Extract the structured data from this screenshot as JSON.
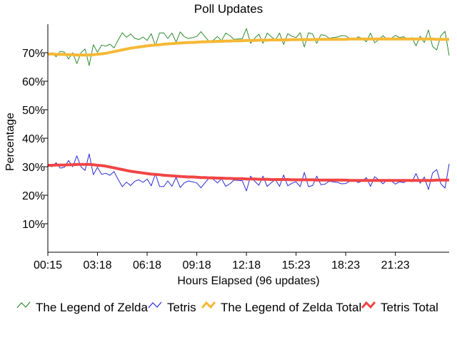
{
  "chart_data": {
    "type": "line",
    "title": "Poll Updates",
    "xlabel": "Hours Elapsed (96 updates)",
    "ylabel": "Percentage",
    "ylim": [
      0,
      80
    ],
    "yticks": [
      "10%",
      "20%",
      "30%",
      "40%",
      "50%",
      "60%",
      "70%"
    ],
    "ytick_values": [
      10,
      20,
      30,
      40,
      50,
      60,
      70
    ],
    "xticks": [
      "00:15",
      "03:18",
      "06:18",
      "09:18",
      "12:18",
      "15:23",
      "18:23",
      "21:23"
    ],
    "xtick_indices": [
      0,
      12,
      24,
      36,
      48,
      60,
      72,
      84
    ],
    "grid": false,
    "legend_position": "bottom",
    "series": [
      {
        "name": "The Legend of Zelda",
        "color": "#2e8b2e",
        "values": [
          69.5,
          70.0,
          68.6,
          70.5,
          70.2,
          67.8,
          70.0,
          66.2,
          70.0,
          71.3,
          65.5,
          72.8,
          70.2,
          72.7,
          72.3,
          73.0,
          71.7,
          74.5,
          77.0,
          75.4,
          76.6,
          75.1,
          74.6,
          75.5,
          74.3,
          76.7,
          72.5,
          76.9,
          77.0,
          75.0,
          76.9,
          73.7,
          77.3,
          75.6,
          75.0,
          75.3,
          75.7,
          77.4,
          75.6,
          73.9,
          74.4,
          75.7,
          74.2,
          76.9,
          76.0,
          74.7,
          74.8,
          74.9,
          78.5,
          73.3,
          75.1,
          76.5,
          73.3,
          76.9,
          75.6,
          74.5,
          76.9,
          72.9,
          76.7,
          75.8,
          75.3,
          77.0,
          72.0,
          77.0,
          76.6,
          73.3,
          76.3,
          76.1,
          75.1,
          75.3,
          75.5,
          76.0,
          75.9,
          75.0,
          74.4,
          75.6,
          75.0,
          73.8,
          76.9,
          73.5,
          74.6,
          76.0,
          74.6,
          75.0,
          76.1,
          75.3,
          75.6,
          74.7,
          75.3,
          72.4,
          75.8,
          73.6,
          78.0,
          72.2,
          71.0,
          76.0,
          77.5,
          69.0
        ]
      },
      {
        "name": "Tetris",
        "color": "#2a2ad6",
        "values": [
          30.5,
          30.0,
          31.4,
          29.5,
          29.8,
          32.2,
          30.0,
          33.8,
          30.0,
          28.7,
          34.5,
          27.2,
          29.8,
          27.3,
          27.7,
          27.0,
          28.3,
          25.5,
          23.0,
          24.6,
          23.4,
          24.9,
          25.4,
          24.5,
          25.7,
          23.3,
          27.5,
          23.1,
          23.0,
          25.0,
          23.1,
          26.3,
          22.7,
          24.4,
          25.0,
          24.7,
          24.3,
          22.6,
          24.4,
          26.1,
          25.6,
          24.3,
          25.8,
          23.1,
          24.0,
          25.3,
          25.2,
          25.1,
          21.5,
          26.7,
          24.9,
          23.5,
          26.7,
          23.1,
          24.4,
          25.5,
          23.1,
          27.1,
          23.3,
          24.2,
          24.7,
          23.0,
          28.0,
          23.0,
          23.4,
          26.7,
          23.7,
          23.9,
          24.9,
          24.7,
          24.5,
          24.0,
          24.1,
          25.0,
          25.6,
          24.4,
          25.0,
          26.2,
          23.1,
          26.5,
          25.4,
          24.0,
          25.4,
          25.0,
          23.9,
          24.7,
          24.4,
          25.3,
          24.7,
          27.6,
          24.2,
          26.4,
          22.0,
          27.8,
          29.0,
          24.0,
          22.5,
          31.0
        ]
      },
      {
        "name": "The Legend of Zelda Total",
        "color": "#f5b835",
        "values": [
          69.5,
          69.6,
          69.4,
          69.4,
          69.4,
          69.3,
          69.3,
          69.2,
          69.2,
          69.2,
          69.2,
          69.3,
          69.5,
          69.6,
          69.8,
          70.1,
          70.4,
          70.7,
          71.0,
          71.3,
          71.6,
          71.8,
          72.0,
          72.2,
          72.4,
          72.6,
          72.7,
          72.8,
          73.0,
          73.1,
          73.2,
          73.3,
          73.4,
          73.5,
          73.6,
          73.6,
          73.7,
          73.8,
          73.8,
          73.9,
          73.9,
          74.0,
          74.0,
          74.1,
          74.1,
          74.2,
          74.2,
          74.2,
          74.3,
          74.3,
          74.3,
          74.4,
          74.4,
          74.4,
          74.5,
          74.5,
          74.5,
          74.5,
          74.5,
          74.6,
          74.6,
          74.6,
          74.6,
          74.6,
          74.6,
          74.7,
          74.7,
          74.7,
          74.7,
          74.7,
          74.7,
          74.7,
          74.7,
          74.8,
          74.8,
          74.8,
          74.8,
          74.8,
          74.8,
          74.8,
          74.8,
          74.8,
          74.8,
          74.8,
          74.8,
          74.8,
          74.8,
          74.8,
          74.8,
          74.8,
          74.8,
          74.8,
          74.8,
          74.8,
          74.7,
          74.7,
          74.7,
          74.7
        ]
      },
      {
        "name": "Tetris Total",
        "color": "#f04545",
        "values": [
          30.5,
          30.5,
          30.6,
          30.6,
          30.6,
          30.7,
          30.7,
          30.8,
          30.8,
          30.8,
          30.8,
          30.7,
          30.5,
          30.4,
          30.2,
          29.9,
          29.6,
          29.3,
          29.0,
          28.7,
          28.4,
          28.2,
          28.0,
          27.8,
          27.6,
          27.4,
          27.3,
          27.2,
          27.0,
          26.9,
          26.8,
          26.7,
          26.6,
          26.5,
          26.4,
          26.4,
          26.3,
          26.2,
          26.2,
          26.1,
          26.1,
          26.0,
          26.0,
          25.9,
          25.9,
          25.8,
          25.8,
          25.8,
          25.7,
          25.7,
          25.7,
          25.6,
          25.6,
          25.6,
          25.5,
          25.5,
          25.5,
          25.5,
          25.5,
          25.4,
          25.4,
          25.4,
          25.4,
          25.4,
          25.4,
          25.3,
          25.3,
          25.3,
          25.3,
          25.3,
          25.3,
          25.3,
          25.3,
          25.2,
          25.2,
          25.2,
          25.2,
          25.2,
          25.2,
          25.2,
          25.2,
          25.2,
          25.2,
          25.2,
          25.2,
          25.2,
          25.2,
          25.2,
          25.2,
          25.2,
          25.2,
          25.2,
          25.2,
          25.2,
          25.3,
          25.3,
          25.3,
          25.3
        ]
      }
    ]
  }
}
